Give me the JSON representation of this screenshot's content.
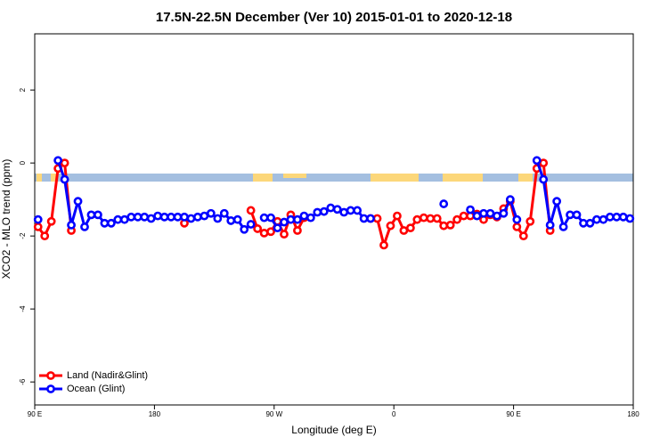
{
  "chart_data": {
    "type": "line",
    "title": "17.5N-22.5N December (Ver 10)   2015-01-01 to 2020-12-18",
    "x_label": "Longitude (deg E)",
    "y_label": "XCO2 - MLO trend (ppm)",
    "xlim": [
      90,
      540
    ],
    "xticks": [
      {
        "value": 90,
        "label": "90 E"
      },
      {
        "value": 180,
        "label": "180"
      },
      {
        "value": 270,
        "label": "90 W"
      },
      {
        "value": 360,
        "label": "0"
      },
      {
        "value": 450,
        "label": "90 E"
      },
      {
        "value": 540,
        "label": "180"
      }
    ],
    "ylim": [
      -6.63,
      3.54
    ],
    "yticks": [
      2,
      0,
      -2,
      -4,
      -6
    ],
    "legend": "bottom-left",
    "x": [
      92.5,
      97.5,
      102.5,
      107.5,
      112.5,
      117.5,
      122.5,
      127.5,
      132.5,
      137.5,
      142.5,
      147.5,
      152.5,
      157.5,
      162.5,
      167.5,
      172.5,
      177.5,
      182.5,
      187.5,
      192.5,
      197.5,
      202.5,
      207.5,
      212.5,
      217.5,
      222.5,
      227.5,
      232.5,
      237.5,
      242.5,
      247.5,
      252.5,
      257.5,
      262.5,
      267.5,
      272.5,
      277.5,
      282.5,
      287.5,
      292.5,
      297.5,
      302.5,
      307.5,
      312.5,
      317.5,
      322.5,
      327.5,
      332.5,
      337.5,
      342.5,
      347.5,
      352.5,
      357.5,
      362.5,
      367.5,
      372.5,
      377.5,
      382.5,
      387.5,
      392.5,
      397.5,
      402.5,
      407.5,
      412.5,
      417.5,
      422.5,
      427.5,
      432.5,
      437.5,
      442.5,
      447.5,
      452.5,
      457.5,
      462.5,
      467.5,
      472.5,
      477.5,
      482.5,
      487.5,
      492.5,
      497.5,
      502.5,
      507.5,
      512.5,
      517.5,
      522.5,
      527.5,
      532.5,
      537.5
    ],
    "series": [
      {
        "name": "Land (Nadir&Glint)",
        "color": "#ff0000",
        "values": [
          -1.75,
          -2.0,
          -1.6,
          -0.15,
          0.0,
          -1.85,
          null,
          null,
          null,
          null,
          null,
          null,
          null,
          null,
          null,
          null,
          null,
          null,
          null,
          null,
          null,
          null,
          -1.65,
          null,
          null,
          null,
          null,
          null,
          null,
          null,
          null,
          null,
          -1.3,
          -1.8,
          -1.92,
          -1.88,
          -1.6,
          -1.95,
          -1.42,
          -1.85,
          -1.5,
          null,
          null,
          null,
          null,
          null,
          null,
          null,
          null,
          null,
          -1.52,
          -1.52,
          -2.25,
          -1.72,
          -1.45,
          -1.85,
          -1.78,
          -1.55,
          -1.5,
          -1.52,
          -1.52,
          -1.72,
          -1.7,
          -1.55,
          -1.45,
          -1.45,
          -1.4,
          -1.55,
          -1.42,
          -1.48,
          -1.25,
          -1.05,
          -1.75,
          -2.0,
          -1.6,
          -0.15,
          0.0,
          -1.85,
          null,
          null,
          null,
          null,
          null,
          null,
          null,
          null,
          null,
          null,
          null,
          null
        ]
      },
      {
        "name": "Ocean (Glint)",
        "color": "#0000ff",
        "values": [
          -1.55,
          null,
          null,
          0.07,
          -0.45,
          -1.7,
          -1.05,
          -1.75,
          -1.42,
          -1.42,
          -1.65,
          -1.65,
          -1.55,
          -1.55,
          -1.48,
          -1.48,
          -1.48,
          -1.52,
          -1.45,
          -1.48,
          -1.48,
          -1.48,
          -1.48,
          -1.52,
          -1.48,
          -1.45,
          -1.38,
          -1.52,
          -1.38,
          -1.58,
          -1.55,
          -1.82,
          -1.68,
          null,
          -1.5,
          -1.5,
          -1.78,
          -1.62,
          -1.55,
          -1.55,
          -1.45,
          -1.5,
          -1.35,
          -1.33,
          -1.23,
          -1.27,
          -1.35,
          -1.3,
          -1.3,
          -1.52,
          -1.52,
          null,
          null,
          null,
          null,
          null,
          null,
          null,
          null,
          null,
          null,
          -1.12,
          null,
          null,
          null,
          -1.28,
          -1.45,
          -1.38,
          -1.38,
          -1.45,
          -1.38,
          -1.0,
          -1.55,
          null,
          null,
          0.07,
          -0.45,
          -1.7,
          -1.05,
          -1.75,
          -1.42,
          -1.42,
          -1.65,
          -1.65,
          -1.55,
          -1.55,
          -1.48,
          -1.48,
          -1.48,
          -1.52
        ]
      }
    ]
  }
}
